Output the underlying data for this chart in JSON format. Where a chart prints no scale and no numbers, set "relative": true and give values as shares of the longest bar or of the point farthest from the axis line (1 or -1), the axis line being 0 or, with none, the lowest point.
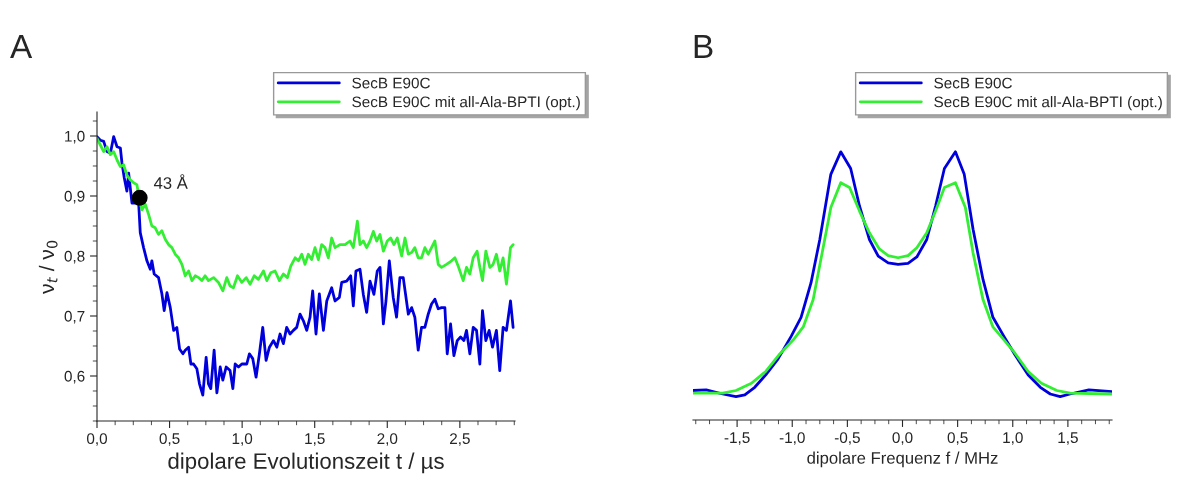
{
  "chart_data": [
    {
      "type": "line",
      "title": "A",
      "xlabel": "dipolare Evolutionszeit t / µs",
      "ylabel": "ν$_{t}$ / ν$_{0}$",
      "xlim": [
        0,
        2.88
      ],
      "ylim": [
        0.525,
        1.04
      ],
      "xticks": [
        {
          "value": 0,
          "label": "0,0"
        },
        {
          "value": 0.5,
          "label": "0,5"
        },
        {
          "value": 1.0,
          "label": "1,0"
        },
        {
          "value": 1.5,
          "label": "1,5"
        },
        {
          "value": 2.0,
          "label": "2,0"
        },
        {
          "value": 2.5,
          "label": "2,5"
        }
      ],
      "yticks": [
        {
          "value": 0.6,
          "label": "0,6"
        },
        {
          "value": 0.7,
          "label": "0,7"
        },
        {
          "value": 0.8,
          "label": "0,8"
        },
        {
          "value": 0.9,
          "label": "0,9"
        },
        {
          "value": 1.0,
          "label": "1,0"
        }
      ],
      "grid": false,
      "legend": "top right",
      "marker": "none",
      "line_style": "solid",
      "annotations": [
        {
          "text": "43 Å",
          "x": 0.294,
          "y": 0.897
        }
      ],
      "series": [
        {
          "name": "SecB E90C",
          "color": "#0000dd",
          "x": [
            0.0,
            0.023,
            0.046,
            0.069,
            0.092,
            0.115,
            0.138,
            0.161,
            0.172,
            0.188,
            0.206,
            0.218,
            0.241,
            0.264,
            0.275,
            0.287,
            0.298,
            0.321,
            0.344,
            0.367,
            0.378,
            0.394,
            0.424,
            0.447,
            0.463,
            0.482,
            0.505,
            0.528,
            0.55,
            0.569,
            0.592,
            0.608,
            0.631,
            0.647,
            0.665,
            0.688,
            0.706,
            0.729,
            0.752,
            0.768,
            0.784,
            0.807,
            0.826,
            0.849,
            0.867,
            0.89,
            0.917,
            0.936,
            0.952,
            0.975,
            0.998,
            1.032,
            1.05,
            1.073,
            1.096,
            1.119,
            1.142,
            1.165,
            1.188,
            1.216,
            1.239,
            1.261,
            1.284,
            1.307,
            1.33,
            1.353,
            1.376,
            1.399,
            1.422,
            1.445,
            1.468,
            1.486,
            1.509,
            1.532,
            1.56,
            1.583,
            1.617,
            1.64,
            1.67,
            1.686,
            1.72,
            1.748,
            1.766,
            1.784,
            1.812,
            1.835,
            1.858,
            1.881,
            1.908,
            1.931,
            1.95,
            1.973,
            1.991,
            2.014,
            2.041,
            2.064,
            2.087,
            2.11,
            2.145,
            2.168,
            2.19,
            2.213,
            2.236,
            2.259,
            2.282,
            2.305,
            2.328,
            2.351,
            2.374,
            2.397,
            2.413,
            2.436,
            2.459,
            2.482,
            2.505,
            2.528,
            2.546,
            2.569,
            2.592,
            2.615,
            2.638,
            2.656,
            2.679,
            2.702,
            2.725,
            2.752,
            2.775,
            2.798,
            2.821,
            2.849,
            2.867
          ],
          "values": [
            0.999,
            0.993,
            0.991,
            0.974,
            0.971,
            0.999,
            0.982,
            0.98,
            0.955,
            0.93,
            0.908,
            0.938,
            0.888,
            0.888,
            0.897,
            0.888,
            0.839,
            0.814,
            0.792,
            0.778,
            0.792,
            0.77,
            0.764,
            0.737,
            0.709,
            0.739,
            0.714,
            0.676,
            0.681,
            0.645,
            0.637,
            0.643,
            0.648,
            0.62,
            0.62,
            0.612,
            0.587,
            0.568,
            0.631,
            0.587,
            0.579,
            0.643,
            0.572,
            0.615,
            0.593,
            0.615,
            0.609,
            0.579,
            0.62,
            0.615,
            0.62,
            0.62,
            0.637,
            0.629,
            0.598,
            0.637,
            0.681,
            0.626,
            0.648,
            0.659,
            0.648,
            0.67,
            0.654,
            0.681,
            0.67,
            0.676,
            0.681,
            0.703,
            0.692,
            0.676,
            0.698,
            0.742,
            0.67,
            0.737,
            0.676,
            0.725,
            0.747,
            0.725,
            0.731,
            0.756,
            0.758,
            0.767,
            0.717,
            0.775,
            0.778,
            0.736,
            0.706,
            0.758,
            0.736,
            0.775,
            0.781,
            0.687,
            0.725,
            0.792,
            0.731,
            0.698,
            0.764,
            0.764,
            0.703,
            0.714,
            0.698,
            0.643,
            0.681,
            0.681,
            0.703,
            0.72,
            0.728,
            0.712,
            0.714,
            0.714,
            0.637,
            0.687,
            0.634,
            0.659,
            0.665,
            0.659,
            0.676,
            0.637,
            0.681,
            0.676,
            0.62,
            0.709,
            0.659,
            0.676,
            0.648,
            0.676,
            0.609,
            0.681,
            0.676,
            0.725,
            0.681
          ]
        },
        {
          "name": "SecB E90C mit all-Ala-BPTI (opt.)",
          "color": "#33ee33",
          "x": [
            0.0,
            0.023,
            0.046,
            0.069,
            0.092,
            0.115,
            0.138,
            0.161,
            0.183,
            0.206,
            0.229,
            0.252,
            0.275,
            0.294,
            0.31,
            0.333,
            0.356,
            0.378,
            0.401,
            0.424,
            0.447,
            0.47,
            0.493,
            0.516,
            0.539,
            0.562,
            0.585,
            0.608,
            0.631,
            0.654,
            0.677,
            0.7,
            0.722,
            0.745,
            0.768,
            0.803,
            0.837,
            0.867,
            0.894,
            0.917,
            0.94,
            0.968,
            0.998,
            1.028,
            1.055,
            1.083,
            1.112,
            1.147,
            1.17,
            1.197,
            1.227,
            1.257,
            1.284,
            1.312,
            1.335,
            1.365,
            1.388,
            1.411,
            1.433,
            1.456,
            1.479,
            1.502,
            1.525,
            1.548,
            1.571,
            1.594,
            1.617,
            1.64,
            1.674,
            1.709,
            1.743,
            1.766,
            1.794,
            1.812,
            1.835,
            1.858,
            1.881,
            1.904,
            1.927,
            1.95,
            1.973,
            2.0,
            2.023,
            2.046,
            2.069,
            2.099,
            2.122,
            2.145,
            2.168,
            2.19,
            2.213,
            2.236,
            2.259,
            2.282,
            2.305,
            2.328,
            2.351,
            2.374,
            2.408,
            2.443,
            2.466,
            2.489,
            2.523,
            2.546,
            2.569,
            2.592,
            2.619,
            2.638,
            2.656,
            2.679,
            2.707,
            2.729,
            2.752,
            2.775,
            2.798,
            2.821,
            2.849,
            2.867
          ],
          "values": [
            0.996,
            0.985,
            0.974,
            0.982,
            0.969,
            0.974,
            0.96,
            0.949,
            0.952,
            0.935,
            0.927,
            0.922,
            0.919,
            0.891,
            0.877,
            0.886,
            0.869,
            0.85,
            0.847,
            0.836,
            0.842,
            0.828,
            0.819,
            0.814,
            0.803,
            0.797,
            0.786,
            0.767,
            0.775,
            0.759,
            0.767,
            0.764,
            0.759,
            0.767,
            0.759,
            0.764,
            0.756,
            0.742,
            0.764,
            0.75,
            0.747,
            0.767,
            0.756,
            0.764,
            0.753,
            0.767,
            0.761,
            0.775,
            0.759,
            0.772,
            0.775,
            0.759,
            0.77,
            0.764,
            0.783,
            0.797,
            0.792,
            0.803,
            0.786,
            0.803,
            0.794,
            0.814,
            0.794,
            0.819,
            0.814,
            0.797,
            0.83,
            0.814,
            0.819,
            0.819,
            0.825,
            0.814,
            0.858,
            0.819,
            0.825,
            0.814,
            0.825,
            0.841,
            0.825,
            0.836,
            0.808,
            0.825,
            0.83,
            0.819,
            0.83,
            0.8,
            0.83,
            0.803,
            0.806,
            0.814,
            0.797,
            0.797,
            0.814,
            0.803,
            0.814,
            0.825,
            0.786,
            0.781,
            0.786,
            0.792,
            0.797,
            0.783,
            0.759,
            0.781,
            0.77,
            0.797,
            0.808,
            0.781,
            0.759,
            0.808,
            0.781,
            0.786,
            0.803,
            0.775,
            0.797,
            0.753,
            0.814,
            0.819
          ]
        },
        {
          "type": "scatter",
          "color": "#000000",
          "marker": "circle",
          "x": [
            0.294
          ],
          "values": [
            0.897
          ]
        }
      ]
    },
    {
      "type": "line",
      "title": "B",
      "xlabel": "dipolare Frequenz f / MHz",
      "relative": true,
      "tick_labels": "x",
      "xlim": [
        -1.9,
        1.9
      ],
      "xticks": [
        {
          "value": -1.5,
          "label": "-1,5"
        },
        {
          "value": -1.0,
          "label": "-1,0"
        },
        {
          "value": -0.5,
          "label": "-0,5"
        },
        {
          "value": 0,
          "label": "0,0"
        },
        {
          "value": 0.5,
          "label": "0,5"
        },
        {
          "value": 1.0,
          "label": "1,0"
        },
        {
          "value": 1.5,
          "label": "1,5"
        }
      ],
      "grid": false,
      "legend": "top right",
      "marker": "none",
      "line_style": "solid",
      "series": [
        {
          "name": "SecB E90C",
          "color": "#0000dd",
          "x": [
            -1.9,
            -1.78,
            -1.63,
            -1.51,
            -1.43,
            -1.34,
            -1.24,
            -1.13,
            -1.01,
            -0.92,
            -0.83,
            -0.75,
            -0.65,
            -0.56,
            -0.47,
            -0.39,
            -0.3,
            -0.22,
            -0.13,
            -0.04,
            0.05,
            0.13,
            0.22,
            0.3,
            0.38,
            0.48,
            0.56,
            0.64,
            0.73,
            0.82,
            0.92,
            1.02,
            1.14,
            1.25,
            1.34,
            1.43,
            1.52,
            1.69,
            1.9
          ],
          "values": [
            0.11,
            0.112,
            0.097,
            0.087,
            0.094,
            0.122,
            0.168,
            0.227,
            0.312,
            0.383,
            0.511,
            0.673,
            0.916,
            1.0,
            0.938,
            0.798,
            0.673,
            0.611,
            0.586,
            0.58,
            0.584,
            0.608,
            0.673,
            0.798,
            0.938,
            1.0,
            0.916,
            0.711,
            0.524,
            0.383,
            0.312,
            0.243,
            0.168,
            0.122,
            0.097,
            0.087,
            0.097,
            0.112,
            0.106
          ]
        },
        {
          "name": "SecB E90C mit all-Ala-BPTI (opt.)",
          "color": "#33ee33",
          "x": [
            -1.9,
            -1.63,
            -1.51,
            -1.37,
            -1.24,
            -1.12,
            -0.99,
            -0.9,
            -0.81,
            -0.74,
            -0.65,
            -0.56,
            -0.48,
            -0.39,
            -0.3,
            -0.21,
            -0.13,
            -0.04,
            0.05,
            0.13,
            0.22,
            0.3,
            0.38,
            0.48,
            0.57,
            0.64,
            0.73,
            0.82,
            0.92,
            1.02,
            1.14,
            1.26,
            1.4,
            1.52,
            1.9
          ],
          "values": [
            0.1,
            0.1,
            0.11,
            0.137,
            0.181,
            0.243,
            0.299,
            0.347,
            0.449,
            0.599,
            0.792,
            0.885,
            0.867,
            0.779,
            0.698,
            0.638,
            0.613,
            0.605,
            0.613,
            0.642,
            0.698,
            0.779,
            0.867,
            0.885,
            0.792,
            0.623,
            0.449,
            0.347,
            0.299,
            0.249,
            0.181,
            0.137,
            0.11,
            0.1,
            0.097
          ]
        }
      ]
    }
  ]
}
